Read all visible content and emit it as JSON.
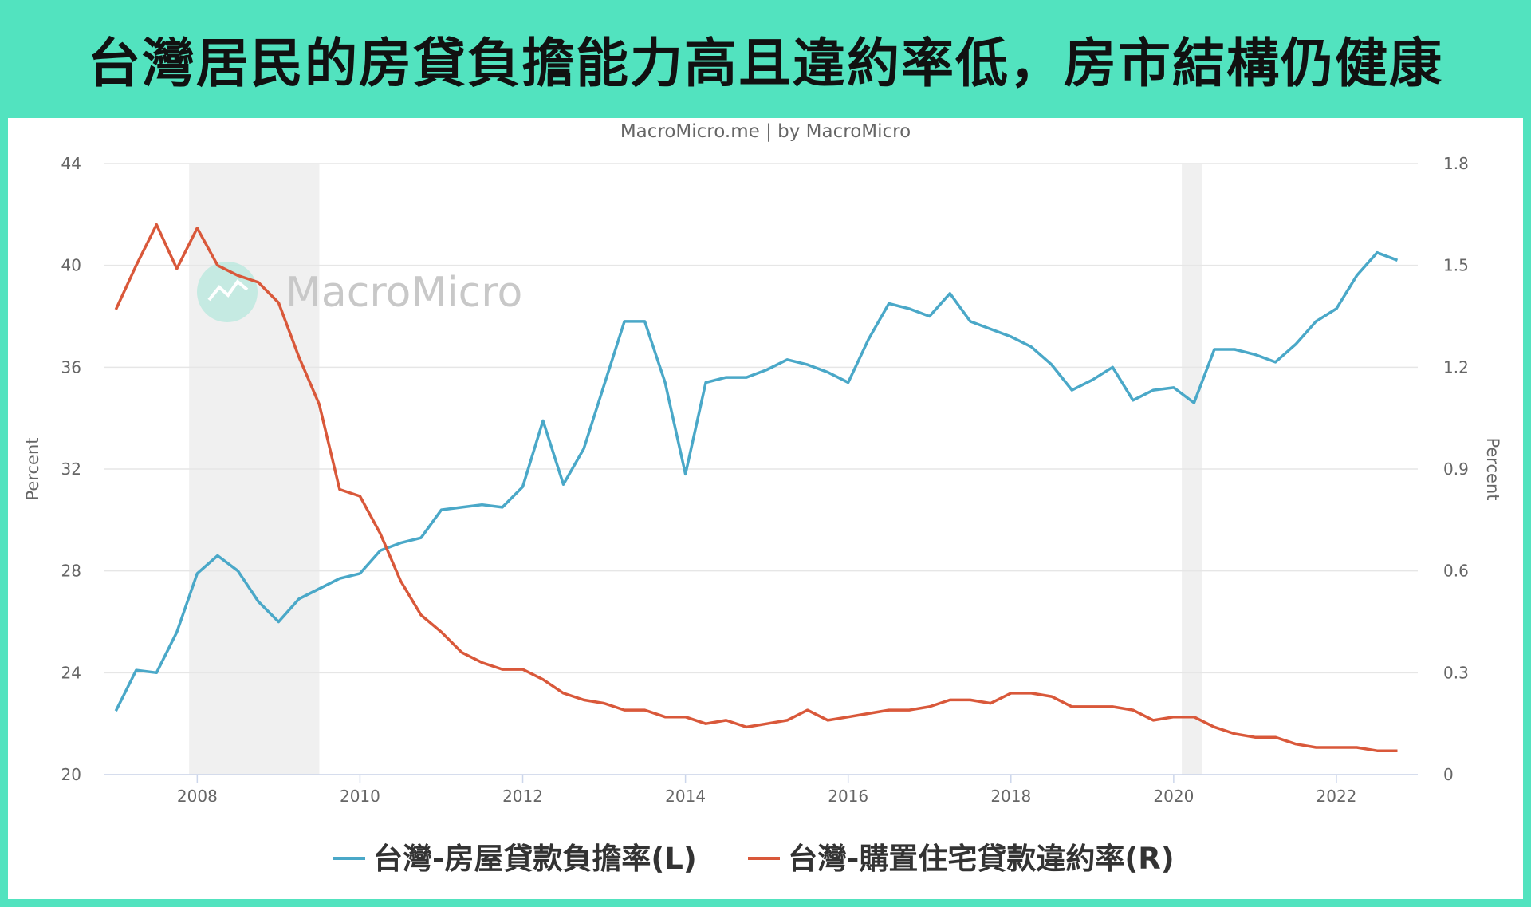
{
  "header": {
    "title": "台灣居民的房貸負擔能力高且違約率低，房市結構仍健康"
  },
  "chart_data": {
    "type": "line",
    "credit": "MacroMicro.me | by MacroMicro",
    "watermark": "MacroMicro",
    "x_ticks": [
      "2008",
      "2010",
      "2012",
      "2014",
      "2016",
      "2018",
      "2020",
      "2022"
    ],
    "xlim": [
      2006.85,
      2023.0
    ],
    "y_left": {
      "label": "Percent",
      "ticks": [
        "20",
        "24",
        "28",
        "32",
        "36",
        "40",
        "44"
      ],
      "lim": [
        20,
        44
      ]
    },
    "y_right": {
      "label": "Percent",
      "ticks": [
        "0",
        "0.3",
        "0.6",
        "0.9",
        "1.2",
        "1.5",
        "1.8"
      ],
      "lim": [
        0,
        1.8
      ]
    },
    "grid": true,
    "shaded_periods": [
      [
        2007.9,
        2009.5
      ],
      [
        2020.1,
        2020.35
      ]
    ],
    "legend_position": "bottom",
    "series": [
      {
        "name": "台灣-房屋貸款負擔率(L)",
        "axis": "left",
        "color": "#4aa8c8",
        "x": [
          2007.0,
          2007.25,
          2007.5,
          2007.75,
          2008.0,
          2008.25,
          2008.5,
          2008.75,
          2009.0,
          2009.25,
          2009.5,
          2009.75,
          2010.0,
          2010.25,
          2010.5,
          2010.75,
          2011.0,
          2011.25,
          2011.5,
          2011.75,
          2012.0,
          2012.25,
          2012.5,
          2012.75,
          2013.0,
          2013.25,
          2013.5,
          2013.75,
          2014.0,
          2014.25,
          2014.5,
          2014.75,
          2015.0,
          2015.25,
          2015.5,
          2015.75,
          2016.0,
          2016.25,
          2016.5,
          2016.75,
          2017.0,
          2017.25,
          2017.5,
          2017.75,
          2018.0,
          2018.25,
          2018.5,
          2018.75,
          2019.0,
          2019.25,
          2019.5,
          2019.75,
          2020.0,
          2020.25,
          2020.5,
          2020.75,
          2021.0,
          2021.25,
          2021.5,
          2021.75,
          2022.0,
          2022.25,
          2022.5,
          2022.75
        ],
        "values": [
          22.5,
          24.1,
          24.0,
          25.6,
          27.9,
          28.6,
          28.0,
          26.8,
          26.0,
          26.9,
          27.3,
          27.7,
          27.9,
          28.8,
          29.1,
          29.3,
          30.4,
          30.5,
          30.6,
          30.5,
          31.3,
          33.9,
          31.4,
          32.8,
          35.3,
          37.8,
          37.8,
          35.4,
          31.8,
          35.4,
          35.6,
          35.6,
          35.9,
          36.3,
          36.1,
          35.8,
          35.4,
          37.1,
          38.5,
          38.3,
          38.0,
          38.9,
          37.8,
          37.5,
          37.2,
          36.8,
          36.1,
          35.1,
          35.5,
          36.0,
          34.7,
          35.1,
          35.2,
          34.6,
          36.7,
          36.7,
          36.5,
          36.2,
          36.9,
          37.8,
          38.3,
          39.6,
          40.5,
          40.2
        ]
      },
      {
        "name": "台灣-購置住宅貸款違約率(R)",
        "axis": "right",
        "color": "#d9583a",
        "x": [
          2007.0,
          2007.25,
          2007.5,
          2007.75,
          2008.0,
          2008.25,
          2008.5,
          2008.75,
          2009.0,
          2009.25,
          2009.5,
          2009.75,
          2010.0,
          2010.25,
          2010.5,
          2010.75,
          2011.0,
          2011.25,
          2011.5,
          2011.75,
          2012.0,
          2012.25,
          2012.5,
          2012.75,
          2013.0,
          2013.25,
          2013.5,
          2013.75,
          2014.0,
          2014.25,
          2014.5,
          2014.75,
          2015.0,
          2015.25,
          2015.5,
          2015.75,
          2016.0,
          2016.25,
          2016.5,
          2016.75,
          2017.0,
          2017.25,
          2017.5,
          2017.75,
          2018.0,
          2018.25,
          2018.5,
          2018.75,
          2019.0,
          2019.25,
          2019.5,
          2019.75,
          2020.0,
          2020.25,
          2020.5,
          2020.75,
          2021.0,
          2021.25,
          2021.5,
          2021.75,
          2022.0,
          2022.25,
          2022.5,
          2022.75
        ],
        "values": [
          1.37,
          1.5,
          1.62,
          1.49,
          1.61,
          1.5,
          1.47,
          1.45,
          1.39,
          1.23,
          1.09,
          0.84,
          0.82,
          0.71,
          0.57,
          0.47,
          0.42,
          0.36,
          0.33,
          0.31,
          0.31,
          0.28,
          0.24,
          0.22,
          0.21,
          0.19,
          0.19,
          0.17,
          0.17,
          0.15,
          0.16,
          0.14,
          0.15,
          0.16,
          0.19,
          0.16,
          0.17,
          0.18,
          0.19,
          0.19,
          0.2,
          0.22,
          0.22,
          0.21,
          0.24,
          0.24,
          0.23,
          0.2,
          0.2,
          0.2,
          0.19,
          0.16,
          0.17,
          0.17,
          0.14,
          0.12,
          0.11,
          0.11,
          0.09,
          0.08,
          0.08,
          0.08,
          0.07,
          0.07
        ]
      }
    ]
  }
}
